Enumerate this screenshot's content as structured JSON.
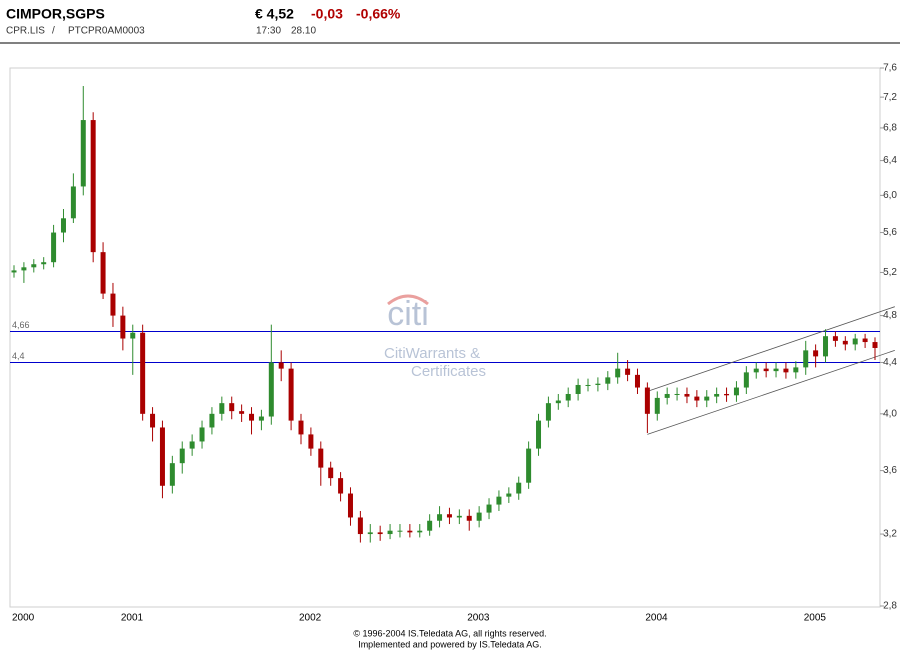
{
  "quote": {
    "name": "CIMPOR,SGPS",
    "price": "€ 4,52",
    "change": "-0,03",
    "change_pct": "-0,66%",
    "symbol": "CPR.LIS",
    "separator": "/",
    "isin": "PTCPR0AM0003",
    "time": "17:30",
    "date": "28.10"
  },
  "watermark": {
    "logo": "citi",
    "line1": "CitiWarrants &",
    "line2": "Certificates"
  },
  "footer": [
    "© 1996-2004 IS.Teledata AG, all rights reserved.",
    "Implemented and powered by IS.Teledata AG."
  ],
  "chart_data": {
    "type": "candlestick",
    "log_y": true,
    "up_color": "#2e8b2e",
    "down_color": "#aa0000",
    "ylim": [
      2.8,
      7.6
    ],
    "yticks": [
      {
        "value": 2.8,
        "label": "2,8"
      },
      {
        "value": 3.2,
        "label": "3,2"
      },
      {
        "value": 3.6,
        "label": "3,6"
      },
      {
        "value": 4.0,
        "label": "4,0"
      },
      {
        "value": 4.4,
        "label": "4,4"
      },
      {
        "value": 4.8,
        "label": "4,8"
      },
      {
        "value": 5.2,
        "label": "5,2"
      },
      {
        "value": 5.6,
        "label": "5,6"
      },
      {
        "value": 6.0,
        "label": "6,0"
      },
      {
        "value": 6.4,
        "label": "6,4"
      },
      {
        "value": 6.8,
        "label": "6,8"
      },
      {
        "value": 7.2,
        "label": "7,2"
      },
      {
        "value": 7.6,
        "label": "7,6"
      }
    ],
    "categories": [
      "2000",
      null,
      null,
      null,
      null,
      null,
      null,
      null,
      null,
      null,
      null,
      "2001",
      null,
      null,
      null,
      null,
      null,
      null,
      null,
      null,
      null,
      null,
      null,
      null,
      null,
      null,
      null,
      null,
      null,
      "2002",
      null,
      null,
      null,
      null,
      null,
      null,
      null,
      null,
      null,
      null,
      null,
      null,
      null,
      null,
      null,
      null,
      "2003",
      null,
      null,
      null,
      null,
      null,
      null,
      null,
      null,
      null,
      null,
      null,
      null,
      null,
      null,
      null,
      null,
      null,
      "2004",
      null,
      null,
      null,
      null,
      null,
      null,
      null,
      null,
      null,
      null,
      null,
      null,
      null,
      null,
      null,
      "2005",
      null,
      null,
      null,
      null,
      null,
      null,
      null
    ],
    "open": [
      5.2,
      5.22,
      5.25,
      5.28,
      5.3,
      5.6,
      5.75,
      6.1,
      6.9,
      5.4,
      5.0,
      4.8,
      4.6,
      4.65,
      4.0,
      3.9,
      3.5,
      3.65,
      3.75,
      3.8,
      3.9,
      4.0,
      4.08,
      4.02,
      4.0,
      3.95,
      3.98,
      4.4,
      4.35,
      3.95,
      3.85,
      3.75,
      3.62,
      3.55,
      3.45,
      3.3,
      3.2,
      3.21,
      3.2,
      3.22,
      3.22,
      3.21,
      3.22,
      3.28,
      3.32,
      3.3,
      3.31,
      3.28,
      3.33,
      3.38,
      3.43,
      3.45,
      3.52,
      3.75,
      3.95,
      4.08,
      4.1,
      4.15,
      4.22,
      4.22,
      4.23,
      4.28,
      4.35,
      4.3,
      4.2,
      4.0,
      4.12,
      4.15,
      4.15,
      4.13,
      4.1,
      4.13,
      4.15,
      4.14,
      4.2,
      4.32,
      4.35,
      4.33,
      4.35,
      4.32,
      4.36,
      4.5,
      4.45,
      4.62,
      4.58,
      4.55,
      4.6,
      4.57
    ],
    "high": [
      5.27,
      5.3,
      5.33,
      5.35,
      5.68,
      5.85,
      6.25,
      7.35,
      7.0,
      5.5,
      5.1,
      4.88,
      4.72,
      4.72,
      4.05,
      3.95,
      3.7,
      3.8,
      3.85,
      3.95,
      4.05,
      4.13,
      4.13,
      4.07,
      4.05,
      4.03,
      4.72,
      4.5,
      4.4,
      4.0,
      3.9,
      3.8,
      3.66,
      3.59,
      3.49,
      3.34,
      3.26,
      3.25,
      3.26,
      3.26,
      3.26,
      3.26,
      3.32,
      3.37,
      3.36,
      3.35,
      3.35,
      3.37,
      3.42,
      3.47,
      3.49,
      3.56,
      3.8,
      4.0,
      4.13,
      4.15,
      4.2,
      4.27,
      4.27,
      4.28,
      4.33,
      4.48,
      4.42,
      4.35,
      4.24,
      4.17,
      4.2,
      4.2,
      4.2,
      4.18,
      4.18,
      4.2,
      4.2,
      4.25,
      4.37,
      4.4,
      4.4,
      4.4,
      4.4,
      4.41,
      4.58,
      4.55,
      4.68,
      4.66,
      4.62,
      4.64,
      4.64,
      4.61
    ],
    "low": [
      5.15,
      5.1,
      5.2,
      5.23,
      5.25,
      5.5,
      5.7,
      6.0,
      5.3,
      4.95,
      4.7,
      4.5,
      4.3,
      3.95,
      3.8,
      3.42,
      3.45,
      3.58,
      3.7,
      3.75,
      3.85,
      3.95,
      3.96,
      3.94,
      3.85,
      3.88,
      3.92,
      4.25,
      3.88,
      3.78,
      3.7,
      3.5,
      3.5,
      3.4,
      3.25,
      3.15,
      3.15,
      3.16,
      3.17,
      3.18,
      3.18,
      3.18,
      3.19,
      3.24,
      3.26,
      3.26,
      3.22,
      3.24,
      3.29,
      3.34,
      3.39,
      3.41,
      3.48,
      3.7,
      3.9,
      4.03,
      4.05,
      4.1,
      4.17,
      4.17,
      4.18,
      4.23,
      4.25,
      4.15,
      3.86,
      3.95,
      4.07,
      4.1,
      4.08,
      4.05,
      4.05,
      4.08,
      4.09,
      4.09,
      4.15,
      4.27,
      4.28,
      4.28,
      4.27,
      4.27,
      4.3,
      4.36,
      4.4,
      4.53,
      4.5,
      4.5,
      4.52,
      4.42
    ],
    "close": [
      5.22,
      5.25,
      5.28,
      5.3,
      5.6,
      5.75,
      6.1,
      6.9,
      5.4,
      5.0,
      4.8,
      4.6,
      4.65,
      4.0,
      3.9,
      3.5,
      3.65,
      3.75,
      3.8,
      3.9,
      4.0,
      4.08,
      4.02,
      4.0,
      3.95,
      3.98,
      4.4,
      4.35,
      3.95,
      3.85,
      3.75,
      3.62,
      3.55,
      3.45,
      3.3,
      3.2,
      3.21,
      3.2,
      3.22,
      3.22,
      3.21,
      3.22,
      3.28,
      3.32,
      3.3,
      3.31,
      3.28,
      3.33,
      3.38,
      3.43,
      3.45,
      3.52,
      3.75,
      3.95,
      4.08,
      4.1,
      4.15,
      4.22,
      4.22,
      4.23,
      4.28,
      4.35,
      4.3,
      4.2,
      4.0,
      4.12,
      4.15,
      4.15,
      4.13,
      4.1,
      4.13,
      4.15,
      4.14,
      4.2,
      4.32,
      4.35,
      4.33,
      4.35,
      4.32,
      4.36,
      4.5,
      4.45,
      4.62,
      4.58,
      4.55,
      4.6,
      4.57,
      4.52
    ],
    "reference_lines": [
      {
        "value": 4.66,
        "label": "4,66",
        "color": "#0000cc"
      },
      {
        "value": 4.4,
        "label": "4,4",
        "color": "#0000cc"
      }
    ],
    "channel": {
      "from": 64,
      "to": 89,
      "upper": [
        4.17,
        4.88
      ],
      "lower": [
        3.85,
        4.5
      ],
      "color": "#555555"
    }
  }
}
